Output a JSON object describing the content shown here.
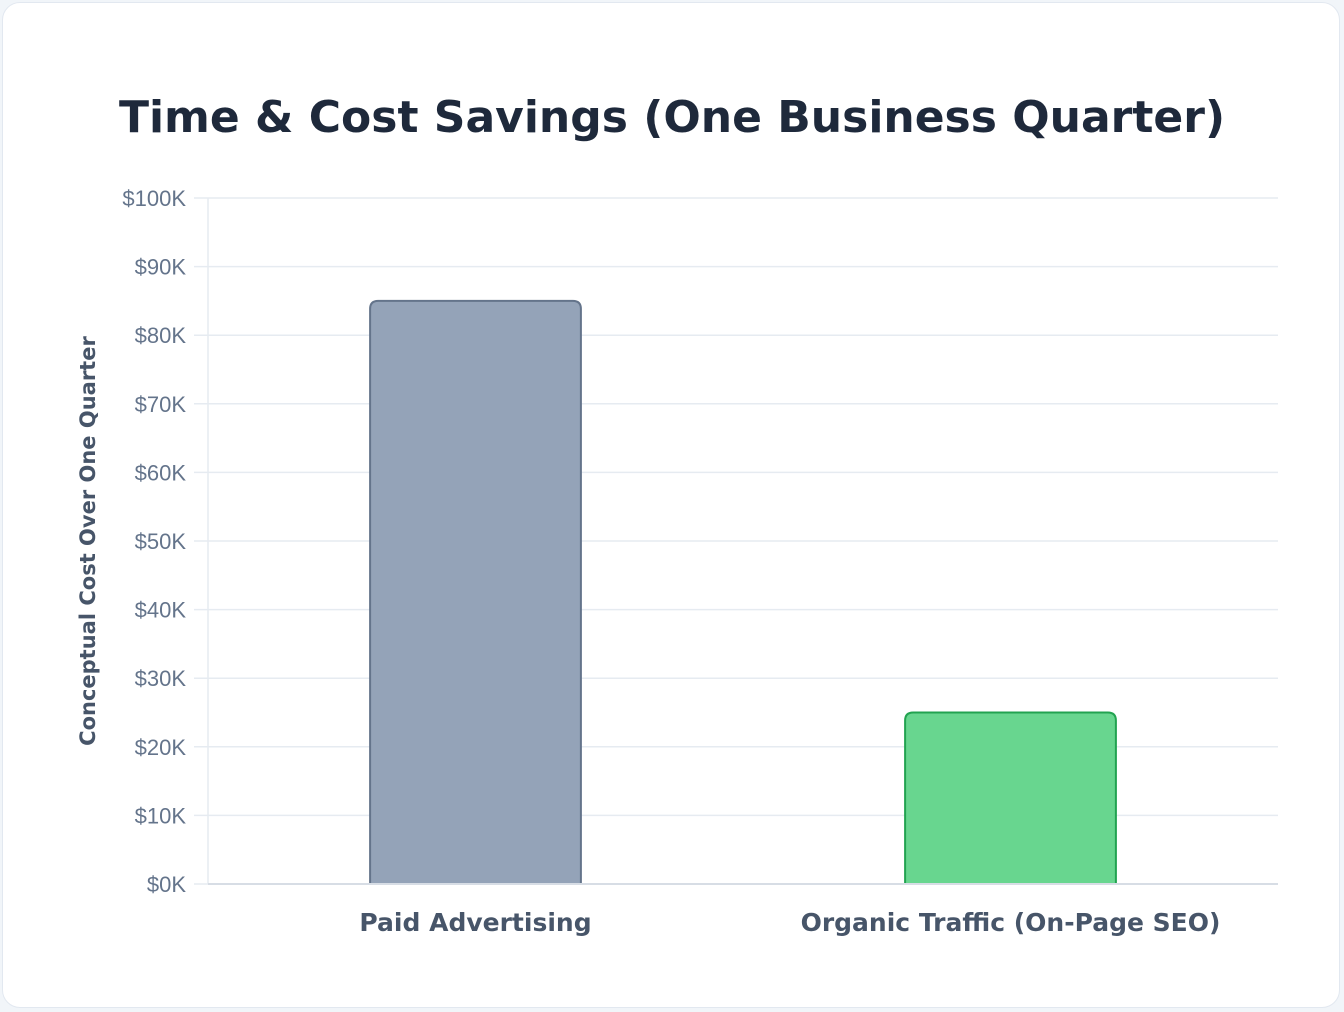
{
  "chart_data": {
    "type": "bar",
    "title": "Time & Cost Savings (One Business Quarter)",
    "xlabel": "",
    "ylabel": "Conceptual Cost Over One Quarter",
    "categories": [
      "Paid Advertising",
      "Organic Traffic (On-Page SEO)"
    ],
    "values": [
      85000,
      25000
    ],
    "ylim": [
      0,
      100000
    ],
    "yticks": [
      0,
      10000,
      20000,
      30000,
      40000,
      50000,
      60000,
      70000,
      80000,
      90000,
      100000
    ],
    "ytick_labels": [
      "$0K",
      "$10K",
      "$20K",
      "$30K",
      "$40K",
      "$50K",
      "$60K",
      "$70K",
      "$80K",
      "$90K",
      "$100K"
    ],
    "bar_colors": [
      "#94a3b8",
      "#68d68f"
    ],
    "bar_border_colors": [
      "#64748b",
      "#22a350"
    ],
    "grid": true,
    "legend": "none"
  }
}
